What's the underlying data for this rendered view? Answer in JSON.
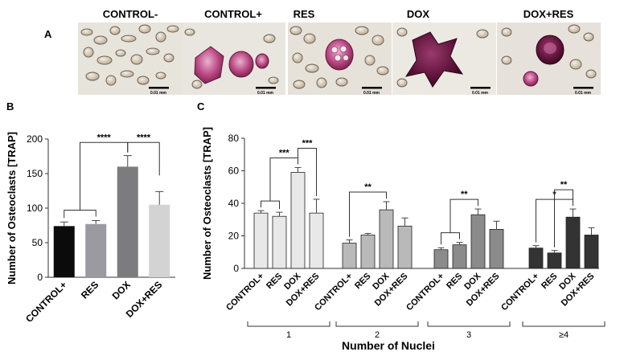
{
  "panel_a": {
    "letter": "A",
    "images": [
      {
        "label": "CONTROL-",
        "scale_label": "0.01 mm"
      },
      {
        "label": "CONTROL+",
        "scale_label": "0.01 mm"
      },
      {
        "label": "RES",
        "scale_label": "0.01 mm"
      },
      {
        "label": "DOX",
        "scale_label": "0.01 mm"
      },
      {
        "label": "DOX+RES",
        "scale_label": "0.01 mm"
      }
    ]
  },
  "chart_data": [
    {
      "type": "bar",
      "panel": "B",
      "categories": [
        "CONTROL+",
        "RES",
        "DOX",
        "DOX+RES"
      ],
      "values": [
        74,
        77,
        160,
        105
      ],
      "errors": [
        6,
        5,
        16,
        19
      ],
      "colors": [
        "#0b0b0b",
        "#9b9aa0",
        "#7c7c7e",
        "#d3d3d3"
      ],
      "ylabel": "Number of Osteoclasts [TRAP]",
      "ylim": [
        0,
        200
      ],
      "yticks": [
        0,
        50,
        100,
        150,
        200
      ],
      "significance": [
        {
          "from": 0,
          "to": 2,
          "from_group": [
            0,
            1
          ],
          "label": "****"
        },
        {
          "from": 2,
          "to": 3,
          "label": "****"
        }
      ]
    },
    {
      "type": "bar",
      "panel": "C",
      "xlabel": "Number of Nuclei",
      "ylabel": "Number of Osteoclasts [TRAP]",
      "ylim": [
        0,
        80
      ],
      "yticks": [
        0,
        20,
        40,
        60,
        80
      ],
      "bar_labels": [
        "CONTROL+",
        "RES",
        "DOX",
        "DOX+RES"
      ],
      "groups": [
        {
          "name": "1",
          "color": "#e8e8e8",
          "values": [
            34,
            32,
            59,
            34
          ],
          "errors": [
            1.5,
            2.5,
            3,
            8.5
          ],
          "significance": [
            {
              "from": 0,
              "to": 2,
              "from_group": [
                0,
                1
              ],
              "label": "***"
            },
            {
              "from": 2,
              "to": 3,
              "label": "***"
            }
          ]
        },
        {
          "name": "2",
          "color": "#b9b9b9",
          "values": [
            15.5,
            20.5,
            36,
            26
          ],
          "errors": [
            2,
            1,
            5,
            5
          ],
          "significance": [
            {
              "from": 0,
              "to": 2,
              "label": "**"
            }
          ]
        },
        {
          "name": "3",
          "color": "#8b8b8b",
          "values": [
            11.5,
            14.5,
            33,
            24
          ],
          "errors": [
            1.2,
            1.5,
            3.5,
            5
          ],
          "significance": [
            {
              "from": 0,
              "to": 2,
              "from_group": [
                0,
                1
              ],
              "label": "**"
            }
          ]
        },
        {
          "name": "≥4",
          "color": "#333333",
          "values": [
            12.5,
            9.5,
            31.5,
            20.5
          ],
          "errors": [
            1.5,
            1.5,
            5,
            4.5
          ],
          "significance": [
            {
              "from": 0,
              "to": 2,
              "label": "*"
            },
            {
              "from": 1,
              "to": 2,
              "label": "**"
            }
          ]
        }
      ]
    }
  ]
}
